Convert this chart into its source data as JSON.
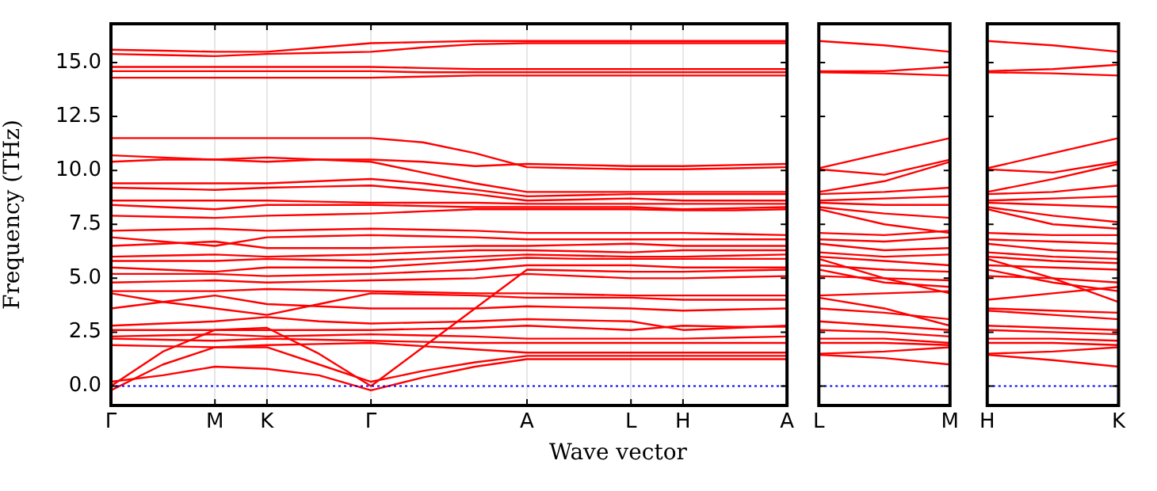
{
  "chart_data": [
    {
      "type": "line",
      "xlabel": "Wave vector",
      "ylabel": "Frequency (THz)",
      "grid": "x",
      "marker": "none",
      "line_style": "solid",
      "ylim": [
        -0.9,
        16.8
      ],
      "yticks": [
        {
          "value": 0,
          "label": "0.0"
        },
        2.5,
        {
          "value": 5,
          "label": "5.0"
        },
        7.5,
        {
          "value": 10,
          "label": "10.0"
        },
        12.5,
        {
          "value": 15,
          "label": "15.0"
        }
      ],
      "ref_lines": [
        {
          "axis": "y",
          "value": 0,
          "color": "#0000ff",
          "line_style": "dotted"
        }
      ],
      "categories": [
        "Γ",
        null,
        "M",
        "K",
        null,
        "Γ",
        null,
        null,
        "A",
        null,
        "L",
        "H",
        null,
        "A"
      ],
      "series": [
        {
          "color": "#ff0000",
          "values": [
            15.6,
            15.55,
            15.5,
            15.5,
            15.7,
            15.9,
            15.95,
            16.0,
            16.0,
            16.0,
            16.0,
            16.0,
            16.0,
            16.0
          ]
        },
        {
          "color": "#ff0000",
          "values": [
            15.4,
            15.35,
            15.3,
            15.4,
            15.45,
            15.5,
            15.7,
            15.85,
            15.9,
            15.9,
            15.9,
            15.9,
            15.9,
            15.9
          ]
        },
        {
          "color": "#ff0000",
          "values": [
            14.8,
            14.8,
            14.8,
            14.8,
            14.8,
            14.8,
            14.75,
            14.7,
            14.7,
            14.7,
            14.7,
            14.7,
            14.7,
            14.7
          ]
        },
        {
          "color": "#ff0000",
          "values": [
            14.6,
            14.6,
            14.6,
            14.6,
            14.6,
            14.6,
            14.55,
            14.55,
            14.55,
            14.55,
            14.55,
            14.55,
            14.55,
            14.55
          ]
        },
        {
          "color": "#ff0000",
          "values": [
            14.3,
            14.3,
            14.3,
            14.3,
            14.3,
            14.3,
            14.35,
            14.4,
            14.4,
            14.4,
            14.4,
            14.4,
            14.4,
            14.4
          ]
        },
        {
          "color": "#ff0000",
          "values": [
            11.5,
            11.5,
            11.5,
            11.5,
            11.5,
            11.5,
            11.3,
            10.8,
            10.15,
            10.1,
            10.05,
            10.05,
            10.1,
            10.15
          ]
        },
        {
          "color": "#ff0000",
          "values": [
            10.7,
            10.6,
            10.5,
            10.4,
            10.5,
            10.5,
            10.4,
            10.2,
            10.3,
            10.25,
            10.2,
            10.2,
            10.25,
            10.3
          ]
        },
        {
          "color": "#ff0000",
          "values": [
            10.4,
            10.5,
            10.5,
            10.6,
            10.5,
            10.4,
            9.9,
            9.4,
            9.0,
            9.0,
            9.0,
            9.0,
            9.0,
            9.0
          ]
        },
        {
          "color": "#ff0000",
          "values": [
            9.4,
            9.4,
            9.4,
            9.4,
            9.5,
            9.6,
            9.4,
            9.1,
            8.8,
            8.85,
            8.9,
            8.9,
            8.9,
            8.9
          ]
        },
        {
          "color": "#ff0000",
          "values": [
            9.2,
            9.15,
            9.1,
            9.2,
            9.25,
            9.3,
            9.1,
            8.9,
            8.6,
            8.65,
            8.7,
            8.6,
            8.6,
            8.6
          ]
        },
        {
          "color": "#ff0000",
          "values": [
            8.6,
            8.6,
            8.6,
            8.6,
            8.55,
            8.5,
            8.5,
            8.5,
            8.45,
            8.45,
            8.45,
            8.45,
            8.45,
            8.45
          ]
        },
        {
          "color": "#ff0000",
          "values": [
            8.4,
            8.3,
            8.2,
            8.4,
            8.4,
            8.4,
            8.35,
            8.3,
            8.3,
            8.3,
            8.3,
            8.2,
            8.25,
            8.3
          ]
        },
        {
          "color": "#ff0000",
          "values": [
            7.9,
            7.85,
            7.8,
            7.9,
            7.95,
            8.0,
            8.1,
            8.2,
            8.2,
            8.2,
            8.2,
            8.15,
            8.15,
            8.2
          ]
        },
        {
          "color": "#ff0000",
          "values": [
            7.2,
            7.25,
            7.3,
            7.2,
            7.25,
            7.3,
            7.25,
            7.2,
            7.1,
            7.1,
            7.1,
            7.1,
            7.05,
            7.0
          ]
        },
        {
          "color": "#ff0000",
          "values": [
            6.9,
            6.7,
            6.5,
            6.9,
            6.95,
            7.0,
            6.95,
            6.9,
            6.8,
            6.8,
            6.8,
            6.8,
            6.8,
            6.8
          ]
        },
        {
          "color": "#ff0000",
          "values": [
            6.5,
            6.6,
            6.7,
            6.4,
            6.4,
            6.4,
            6.45,
            6.5,
            6.5,
            6.55,
            6.6,
            6.5,
            6.5,
            6.5
          ]
        },
        {
          "color": "#ff0000",
          "values": [
            6.0,
            6.05,
            6.1,
            6.0,
            6.05,
            6.1,
            6.2,
            6.3,
            6.3,
            6.25,
            6.2,
            6.3,
            6.3,
            6.3
          ]
        },
        {
          "color": "#ff0000",
          "values": [
            5.8,
            5.8,
            5.8,
            5.9,
            5.85,
            5.8,
            5.9,
            6.0,
            6.1,
            6.05,
            6.0,
            6.0,
            6.05,
            6.1
          ]
        },
        {
          "color": "#ff0000",
          "values": [
            5.5,
            5.4,
            5.3,
            5.5,
            5.5,
            5.5,
            5.65,
            5.8,
            5.95,
            5.9,
            5.9,
            5.9,
            5.9,
            5.9
          ]
        },
        {
          "color": "#ff0000",
          "values": [
            5.2,
            5.2,
            5.2,
            5.1,
            5.15,
            5.2,
            5.3,
            5.4,
            5.6,
            5.6,
            5.6,
            5.5,
            5.5,
            5.5
          ]
        },
        {
          "color": "#ff0000",
          "values": [
            4.8,
            4.85,
            4.9,
            4.8,
            4.85,
            4.9,
            4.95,
            5.0,
            5.2,
            5.1,
            5.0,
            5.0,
            5.05,
            5.1
          ]
        },
        {
          "color": "#ff0000",
          "values": [
            4.4,
            4.4,
            4.4,
            4.5,
            4.45,
            4.4,
            4.35,
            4.3,
            4.3,
            4.25,
            4.2,
            4.2,
            4.2,
            4.2
          ]
        },
        {
          "color": "#ff0000",
          "values": [
            4.3,
            3.9,
            3.6,
            3.3,
            3.8,
            4.3,
            4.25,
            4.2,
            4.1,
            4.1,
            4.1,
            4.0,
            4.0,
            4.0
          ]
        },
        {
          "color": "#ff0000",
          "values": [
            3.6,
            3.9,
            4.2,
            3.8,
            3.7,
            3.6,
            3.6,
            3.6,
            3.7,
            3.65,
            3.6,
            3.5,
            3.55,
            3.6
          ]
        },
        {
          "color": "#ff0000",
          "values": [
            2.8,
            2.9,
            3.0,
            3.2,
            3.0,
            2.9,
            2.95,
            3.0,
            3.1,
            3.05,
            3.0,
            2.6,
            2.7,
            2.8
          ]
        },
        {
          "color": "#ff0000",
          "values": [
            2.6,
            2.6,
            2.6,
            2.6,
            2.6,
            2.6,
            2.65,
            2.7,
            2.8,
            2.7,
            2.6,
            2.8,
            2.75,
            2.75
          ]
        },
        {
          "color": "#ff0000",
          "values": [
            2.3,
            2.35,
            2.4,
            2.3,
            2.35,
            2.4,
            2.35,
            2.3,
            2.2,
            2.2,
            2.2,
            2.2,
            2.25,
            2.3
          ]
        },
        {
          "color": "#ff0000",
          "values": [
            2.2,
            2.15,
            2.1,
            2.2,
            2.15,
            2.1,
            2.05,
            2.0,
            2.0,
            2.0,
            2.0,
            2.0,
            2.0,
            2.0
          ]
        },
        {
          "color": "#ff0000",
          "values": [
            1.9,
            1.85,
            1.8,
            1.9,
            1.95,
            2.0,
            1.85,
            1.7,
            1.55,
            1.55,
            1.55,
            1.55,
            1.55,
            1.55
          ]
        },
        {
          "color": "#ff0000",
          "values": [
            0,
            1.6,
            2.6,
            2.7,
            1.5,
            0,
            1.8,
            3.6,
            5.4,
            5.35,
            5.3,
            5.3,
            5.35,
            5.4
          ]
        },
        {
          "color": "#ff0000",
          "values": [
            -0.2,
            1.0,
            1.8,
            1.8,
            1.0,
            0.2,
            0.7,
            1.1,
            1.4,
            1.4,
            1.4,
            1.4,
            1.4,
            1.4
          ]
        },
        {
          "color": "#ff0000",
          "values": [
            0.2,
            0.5,
            0.9,
            0.8,
            0.5,
            -0.2,
            0.4,
            0.9,
            1.25,
            1.25,
            1.25,
            1.25,
            1.25,
            1.25
          ]
        }
      ]
    },
    {
      "type": "line",
      "marker": "none",
      "line_style": "solid",
      "tick_labels": "x",
      "ylim": [
        -0.9,
        16.8
      ],
      "yticks": [
        0,
        2.5,
        5,
        7.5,
        10,
        12.5,
        15
      ],
      "ref_lines": [
        {
          "axis": "y",
          "value": 0,
          "color": "#0000ff",
          "line_style": "dotted"
        }
      ],
      "categories": [
        "L",
        null,
        "M"
      ],
      "series": [
        {
          "color": "#ff0000",
          "values": [
            16.0,
            15.8,
            15.5
          ]
        },
        {
          "color": "#ff0000",
          "values": [
            14.6,
            14.6,
            14.8
          ]
        },
        {
          "color": "#ff0000",
          "values": [
            14.55,
            14.5,
            14.4
          ]
        },
        {
          "color": "#ff0000",
          "values": [
            10.1,
            10.8,
            11.5
          ]
        },
        {
          "color": "#ff0000",
          "values": [
            10.05,
            9.8,
            10.5
          ]
        },
        {
          "color": "#ff0000",
          "values": [
            9.0,
            9.5,
            10.4
          ]
        },
        {
          "color": "#ff0000",
          "values": [
            8.9,
            9.0,
            9.2
          ]
        },
        {
          "color": "#ff0000",
          "values": [
            8.6,
            8.7,
            8.8
          ]
        },
        {
          "color": "#ff0000",
          "values": [
            8.5,
            8.4,
            8.4
          ]
        },
        {
          "color": "#ff0000",
          "values": [
            8.3,
            8.0,
            7.8
          ]
        },
        {
          "color": "#ff0000",
          "values": [
            8.2,
            7.5,
            7.1
          ]
        },
        {
          "color": "#ff0000",
          "values": [
            7.1,
            7.0,
            7.2
          ]
        },
        {
          "color": "#ff0000",
          "values": [
            6.8,
            6.7,
            6.9
          ]
        },
        {
          "color": "#ff0000",
          "values": [
            6.6,
            6.3,
            6.4
          ]
        },
        {
          "color": "#ff0000",
          "values": [
            6.2,
            6.0,
            6.1
          ]
        },
        {
          "color": "#ff0000",
          "values": [
            6.0,
            5.8,
            5.6
          ]
        },
        {
          "color": "#ff0000",
          "values": [
            5.9,
            5.0,
            4.3
          ]
        },
        {
          "color": "#ff0000",
          "values": [
            5.6,
            5.4,
            5.3
          ]
        },
        {
          "color": "#ff0000",
          "values": [
            5.1,
            5.0,
            4.9
          ]
        },
        {
          "color": "#ff0000",
          "values": [
            5.4,
            4.8,
            4.6
          ]
        },
        {
          "color": "#ff0000",
          "values": [
            4.2,
            4.3,
            4.4
          ]
        },
        {
          "color": "#ff0000",
          "values": [
            4.1,
            3.6,
            2.8
          ]
        },
        {
          "color": "#ff0000",
          "values": [
            3.6,
            3.4,
            3.1
          ]
        },
        {
          "color": "#ff0000",
          "values": [
            3.0,
            2.8,
            2.6
          ]
        },
        {
          "color": "#ff0000",
          "values": [
            2.6,
            2.5,
            2.3
          ]
        },
        {
          "color": "#ff0000",
          "values": [
            2.2,
            2.2,
            2.0
          ]
        },
        {
          "color": "#ff0000",
          "values": [
            2.0,
            2.0,
            1.9
          ]
        },
        {
          "color": "#ff0000",
          "values": [
            1.5,
            1.6,
            1.8
          ]
        },
        {
          "color": "#ff0000",
          "values": [
            1.45,
            1.3,
            1.0
          ]
        }
      ]
    },
    {
      "type": "line",
      "marker": "none",
      "line_style": "solid",
      "tick_labels": "x",
      "ylim": [
        -0.9,
        16.8
      ],
      "yticks": [
        0,
        2.5,
        5,
        7.5,
        10,
        12.5,
        15
      ],
      "ref_lines": [
        {
          "axis": "y",
          "value": 0,
          "color": "#0000ff",
          "line_style": "dotted"
        }
      ],
      "categories": [
        "H",
        null,
        "K"
      ],
      "series": [
        {
          "color": "#ff0000",
          "values": [
            16.0,
            15.8,
            15.5
          ]
        },
        {
          "color": "#ff0000",
          "values": [
            14.6,
            14.7,
            14.9
          ]
        },
        {
          "color": "#ff0000",
          "values": [
            14.55,
            14.5,
            14.4
          ]
        },
        {
          "color": "#ff0000",
          "values": [
            10.1,
            10.8,
            11.5
          ]
        },
        {
          "color": "#ff0000",
          "values": [
            10.05,
            9.9,
            10.4
          ]
        },
        {
          "color": "#ff0000",
          "values": [
            9.0,
            9.6,
            10.3
          ]
        },
        {
          "color": "#ff0000",
          "values": [
            8.9,
            9.0,
            9.3
          ]
        },
        {
          "color": "#ff0000",
          "values": [
            8.6,
            8.7,
            8.8
          ]
        },
        {
          "color": "#ff0000",
          "values": [
            8.5,
            8.4,
            8.3
          ]
        },
        {
          "color": "#ff0000",
          "values": [
            8.3,
            7.9,
            7.6
          ]
        },
        {
          "color": "#ff0000",
          "values": [
            8.2,
            7.5,
            7.3
          ]
        },
        {
          "color": "#ff0000",
          "values": [
            7.1,
            7.0,
            7.0
          ]
        },
        {
          "color": "#ff0000",
          "values": [
            6.8,
            6.7,
            6.6
          ]
        },
        {
          "color": "#ff0000",
          "values": [
            6.6,
            6.3,
            6.2
          ]
        },
        {
          "color": "#ff0000",
          "values": [
            6.2,
            6.0,
            5.9
          ]
        },
        {
          "color": "#ff0000",
          "values": [
            6.0,
            5.8,
            5.7
          ]
        },
        {
          "color": "#ff0000",
          "values": [
            5.9,
            5.0,
            3.9
          ]
        },
        {
          "color": "#ff0000",
          "values": [
            5.6,
            5.5,
            5.4
          ]
        },
        {
          "color": "#ff0000",
          "values": [
            5.1,
            5.0,
            4.8
          ]
        },
        {
          "color": "#ff0000",
          "values": [
            5.4,
            4.8,
            4.4
          ]
        },
        {
          "color": "#ff0000",
          "values": [
            4.0,
            4.3,
            4.6
          ]
        },
        {
          "color": "#ff0000",
          "values": [
            3.5,
            3.3,
            3.1
          ]
        },
        {
          "color": "#ff0000",
          "values": [
            3.6,
            3.5,
            3.4
          ]
        },
        {
          "color": "#ff0000",
          "values": [
            2.8,
            2.7,
            2.6
          ]
        },
        {
          "color": "#ff0000",
          "values": [
            2.6,
            2.5,
            2.4
          ]
        },
        {
          "color": "#ff0000",
          "values": [
            2.2,
            2.2,
            2.1
          ]
        },
        {
          "color": "#ff0000",
          "values": [
            2.0,
            2.0,
            1.9
          ]
        },
        {
          "color": "#ff0000",
          "values": [
            1.5,
            1.6,
            1.8
          ]
        },
        {
          "color": "#ff0000",
          "values": [
            1.45,
            1.2,
            0.9
          ]
        }
      ]
    }
  ]
}
